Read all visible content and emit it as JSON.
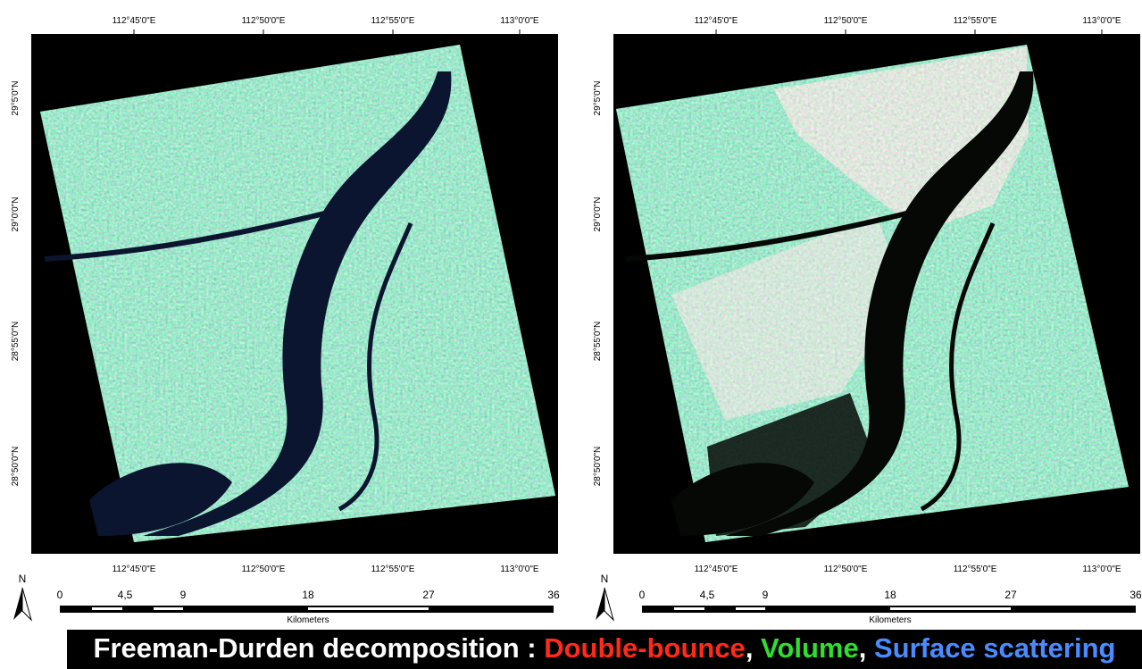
{
  "panels": [
    {
      "lon_labels": [
        "112°45'0\"E",
        "112°50'0\"E",
        "112°55'0\"E",
        "113°0'0\"E"
      ],
      "lat_labels": [
        "29°5'0\"N",
        "29°0'0\"N",
        "28°55'0\"N",
        "28°50'0\"N"
      ],
      "north": "N",
      "scale_labels": [
        "0",
        "4,5",
        "9",
        "18",
        "27",
        "36"
      ],
      "scale_unit": "Kilometers"
    },
    {
      "lon_labels": [
        "112°45'0\"E",
        "112°50'0\"E",
        "112°55'0\"E",
        "113°0'0\"E"
      ],
      "lat_labels": [
        "29°5'0\"N",
        "29°0'0\"N",
        "28°55'0\"N",
        "28°50'0\"N"
      ],
      "north": "N",
      "scale_labels": [
        "0",
        "4,5",
        "9",
        "18",
        "27",
        "36"
      ],
      "scale_unit": "Kilometers"
    }
  ],
  "caption": {
    "parts": [
      {
        "text": "Freeman-Durden decomposition : ",
        "color": "#ffffff"
      },
      {
        "text": "Double-bounce",
        "color": "#ff2a1a"
      },
      {
        "text": ", ",
        "color": "#ffffff"
      },
      {
        "text": "Volume",
        "color": "#2ee02e"
      },
      {
        "text": ", ",
        "color": "#ffffff"
      },
      {
        "text": "Surface scattering",
        "color": "#4a8cff"
      }
    ]
  }
}
